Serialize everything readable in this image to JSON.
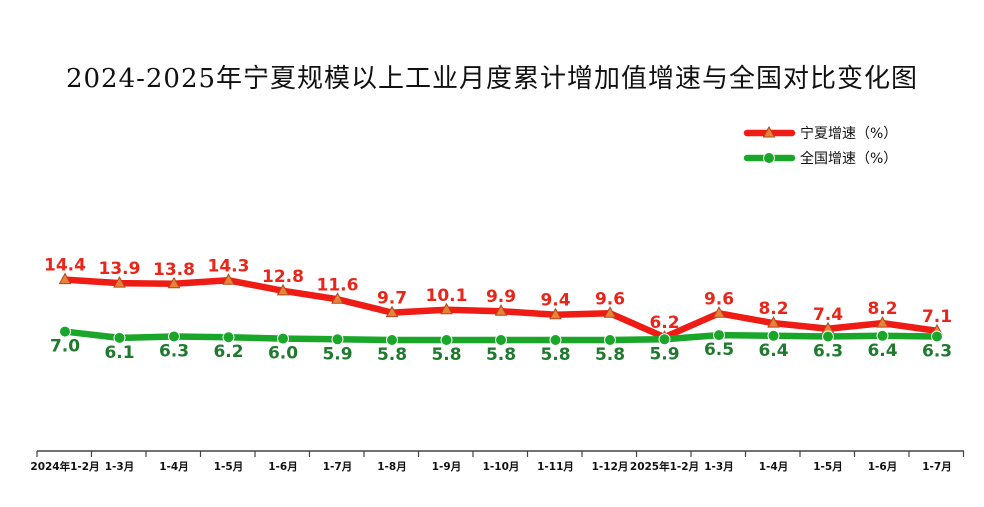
{
  "chart_data": {
    "type": "line",
    "title": "2024-2025年宁夏规模以上工业月度累计增加值增速与全国对比变化图",
    "xlabel": "",
    "ylabel": "",
    "categories": [
      "2024年1-2月",
      "1-3月",
      "1-4月",
      "1-5月",
      "1-6月",
      "1-7月",
      "1-8月",
      "1-9月",
      "1-10月",
      "1-11月",
      "1-12月",
      "2025年1-2月",
      "1-3月",
      "1-4月",
      "1-5月",
      "1-6月",
      "1-7月"
    ],
    "series": [
      {
        "name": "宁夏增速（%）",
        "color": "#ee1c14",
        "marker": "triangle",
        "values": [
          14.4,
          13.9,
          13.8,
          14.3,
          12.8,
          11.6,
          9.7,
          10.1,
          9.9,
          9.4,
          9.6,
          6.2,
          9.6,
          8.2,
          7.4,
          8.2,
          7.1
        ]
      },
      {
        "name": "全国增速（%）",
        "color": "#19a629",
        "marker": "circle",
        "values": [
          7.0,
          6.1,
          6.3,
          6.2,
          6.0,
          5.9,
          5.8,
          5.8,
          5.8,
          5.8,
          5.8,
          5.9,
          6.5,
          6.4,
          6.3,
          6.4,
          6.3
        ]
      }
    ],
    "ylim": [
      -10,
      30
    ],
    "grid": false,
    "legend": "top-right"
  }
}
